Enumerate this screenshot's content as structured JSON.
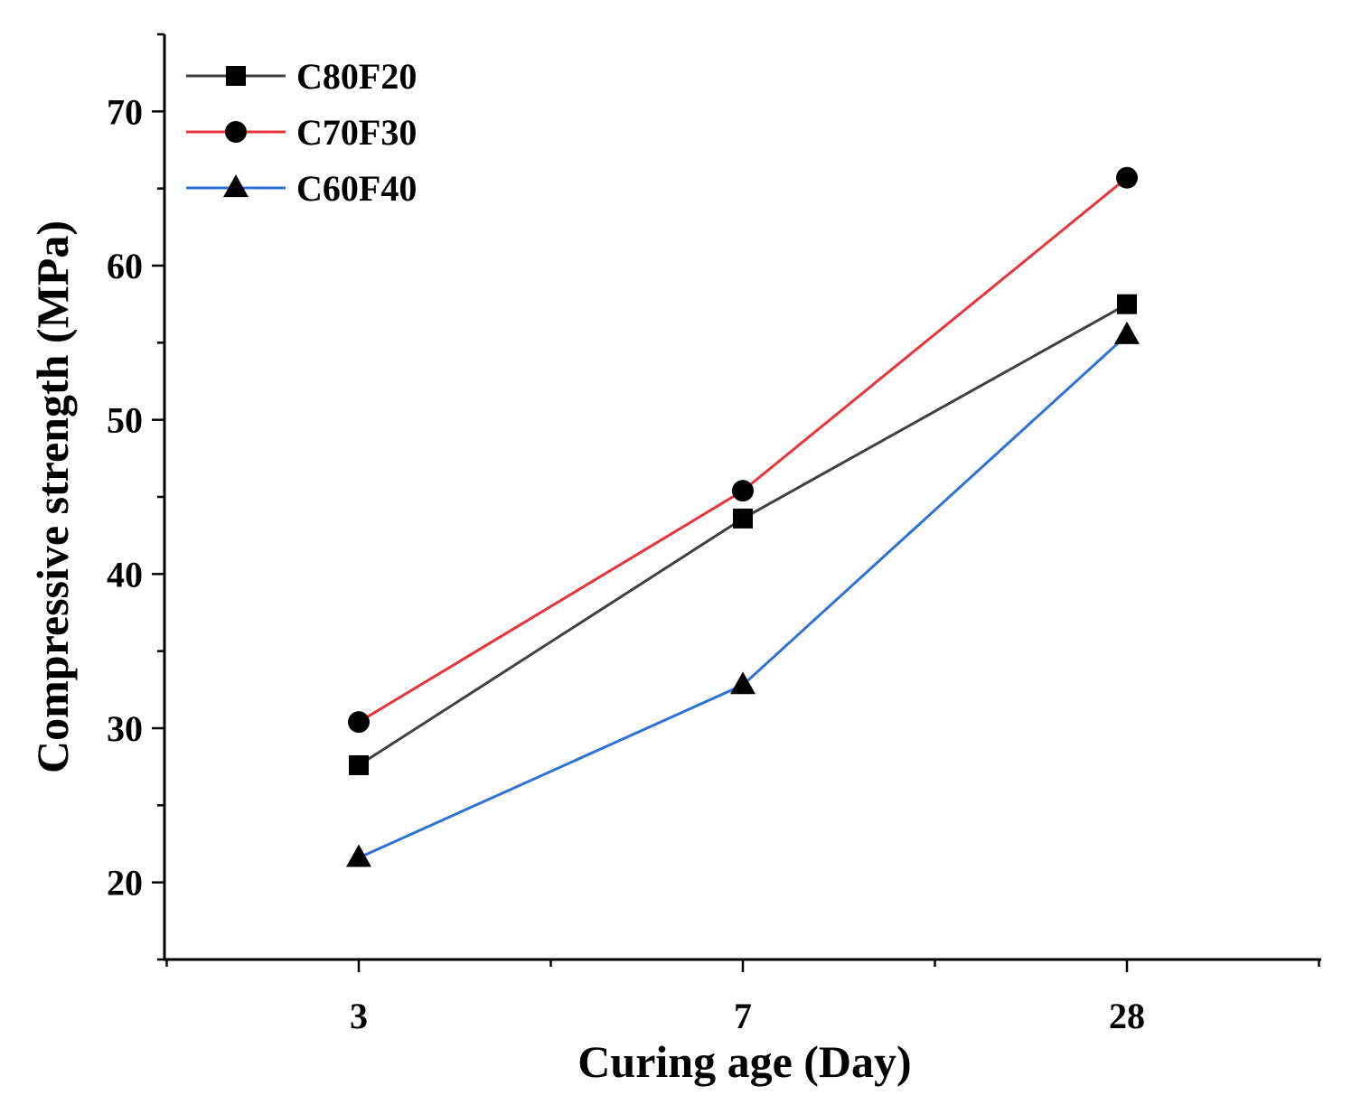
{
  "chart_data": {
    "type": "line",
    "title": "",
    "xlabel": "Curing age (Day)",
    "ylabel": "Compressive strength (MPa)",
    "categories": [
      "3",
      "7",
      "28"
    ],
    "ylim": [
      15,
      75
    ],
    "yticks": [
      "20",
      "30",
      "40",
      "50",
      "60",
      "70"
    ],
    "grid": false,
    "legend_position": "top-left",
    "series": [
      {
        "name": "C80F20",
        "color": "#404040",
        "marker": "square",
        "values": [
          27.6,
          43.6,
          57.5
        ]
      },
      {
        "name": "C70F30",
        "color": "#e8343a",
        "marker": "circle",
        "values": [
          30.4,
          45.4,
          65.7
        ]
      },
      {
        "name": "C60F40",
        "color": "#2f72d6",
        "marker": "triangle",
        "values": [
          21.6,
          32.8,
          55.5
        ]
      }
    ]
  }
}
